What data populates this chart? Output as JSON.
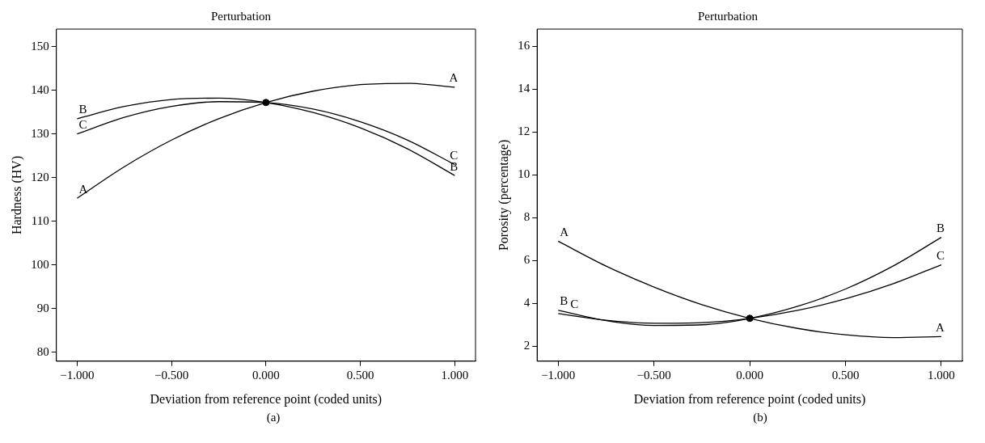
{
  "chart_data": [
    {
      "type": "line",
      "title": "Perturbation",
      "xlabel": "Deviation from reference point (coded units)",
      "ylabel": "Hardness (HV)",
      "annotations": [
        "(a)"
      ],
      "x": [
        -1,
        -0.75,
        -0.5,
        -0.25,
        0,
        0.25,
        0.5,
        0.75,
        1
      ],
      "xlim": [
        -1.11,
        1.11
      ],
      "xticks": [
        {
          "value": -1,
          "label": "−1.000"
        },
        {
          "value": -0.5,
          "label": "−0.500"
        },
        {
          "value": 0,
          "label": "0.000"
        },
        {
          "value": 0.5,
          "label": "0.500"
        },
        {
          "value": 1,
          "label": "1.000"
        }
      ],
      "ylim": [
        78,
        154
      ],
      "yticks": [
        80,
        90,
        100,
        110,
        120,
        130,
        140,
        150
      ],
      "grid": false,
      "legend": false,
      "series": [
        {
          "name": "A",
          "color": "#000000",
          "values": [
            115.3,
            122.5,
            128.6,
            133.5,
            137.2,
            139.8,
            141.3,
            141.6,
            140.7
          ]
        },
        {
          "name": "B",
          "color": "#000000",
          "values": [
            133.5,
            136.3,
            137.9,
            138.2,
            137.2,
            134.9,
            131.4,
            126.6,
            120.5
          ]
        },
        {
          "name": "C",
          "color": "#000000",
          "values": [
            130,
            133.8,
            136.3,
            137.4,
            137.2,
            135.7,
            132.8,
            128.6,
            123
          ]
        },
        {
          "type": "scatter",
          "color": "#000000",
          "marker": "circle",
          "x": [
            0
          ],
          "values": [
            137.2
          ]
        }
      ]
    },
    {
      "type": "line",
      "title": "Perturbation",
      "xlabel": "Deviation from reference point (coded units)",
      "ylabel": "Porosity (percentage)",
      "annotations": [
        "(b)"
      ],
      "x": [
        -1,
        -0.75,
        -0.5,
        -0.25,
        0,
        0.25,
        0.5,
        0.75,
        1
      ],
      "xlim": [
        -1.11,
        1.11
      ],
      "xticks": [
        {
          "value": -1,
          "label": "−1.000"
        },
        {
          "value": -0.5,
          "label": "−0.500"
        },
        {
          "value": 0,
          "label": "0.000"
        },
        {
          "value": 0.5,
          "label": "0.500"
        },
        {
          "value": 1,
          "label": "1.000"
        }
      ],
      "ylim": [
        1.3,
        16.8
      ],
      "yticks": [
        2,
        4,
        6,
        8,
        10,
        12,
        14,
        16
      ],
      "grid": false,
      "legend": false,
      "series": [
        {
          "name": "A",
          "color": "#000000",
          "values": [
            6.9,
            5.74,
            4.76,
            3.94,
            3.3,
            2.83,
            2.53,
            2.4,
            2.45
          ]
        },
        {
          "name": "B",
          "color": "#000000",
          "values": [
            3.67,
            3.19,
            2.97,
            3.0,
            3.3,
            3.86,
            4.67,
            5.75,
            7.08
          ]
        },
        {
          "name": "C",
          "color": "#000000",
          "values": [
            3.52,
            3.21,
            3.07,
            3.1,
            3.3,
            3.67,
            4.21,
            4.92,
            5.8
          ]
        },
        {
          "type": "scatter",
          "color": "#000000",
          "marker": "circle",
          "x": [
            0
          ],
          "values": [
            3.3
          ]
        }
      ]
    }
  ]
}
